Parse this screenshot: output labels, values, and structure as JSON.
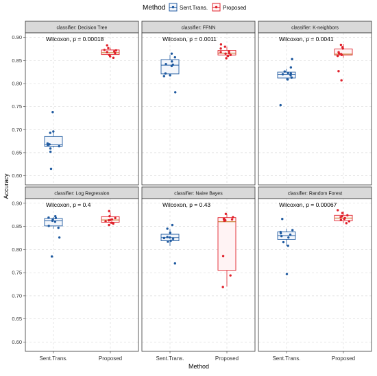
{
  "chart_data": {
    "type": "box",
    "legend": {
      "title": "Method",
      "placement": "top",
      "entries": [
        {
          "name": "Sent.Trans.",
          "color": "#1f5aa0"
        },
        {
          "name": "Proposed",
          "color": "#e0202a"
        }
      ]
    },
    "xlabel": "Method",
    "ylabel": "Accuracy",
    "ylim": [
      0.58,
      0.91
    ],
    "yticks": [
      "0.60",
      "0.65",
      "0.70",
      "0.75",
      "0.80",
      "0.85",
      "0.90"
    ],
    "categories": [
      "Sent.Trans.",
      "Proposed"
    ],
    "grid": true,
    "panels": [
      {
        "strip": "classifier: Decision Tree",
        "annotation": "Wilcoxon, p = 0.00018",
        "groups": [
          {
            "box": [
              0.661,
              0.664,
              0.667,
              0.685,
              0.698
            ],
            "points": [
              0.738,
              0.696,
              0.693,
              0.67,
              0.668,
              0.666,
              0.664,
              0.659,
              0.652,
              0.615
            ]
          },
          {
            "box": [
              0.86,
              0.863,
              0.867,
              0.873,
              0.878
            ],
            "points": [
              0.883,
              0.877,
              0.873,
              0.872,
              0.87,
              0.868,
              0.866,
              0.862,
              0.859,
              0.856
            ]
          }
        ]
      },
      {
        "strip": "classifier: FFNN",
        "annotation": "Wilcoxon, p = 0.0011",
        "groups": [
          {
            "box": [
              0.816,
              0.821,
              0.84,
              0.852,
              0.862
            ],
            "points": [
              0.865,
              0.857,
              0.848,
              0.842,
              0.841,
              0.838,
              0.822,
              0.818,
              0.816,
              0.781
            ]
          },
          {
            "box": [
              0.858,
              0.862,
              0.866,
              0.872,
              0.88
            ],
            "points": [
              0.885,
              0.88,
              0.876,
              0.87,
              0.868,
              0.866,
              0.865,
              0.862,
              0.86,
              0.855
            ]
          }
        ]
      },
      {
        "strip": "classifier: K-neighbors",
        "annotation": "Wilcoxon, p = 0.0041",
        "groups": [
          {
            "box": [
              0.807,
              0.812,
              0.82,
              0.825,
              0.832
            ],
            "points": [
              0.853,
              0.835,
              0.826,
              0.823,
              0.822,
              0.82,
              0.818,
              0.813,
              0.809,
              0.753
            ]
          },
          {
            "box": [
              0.856,
              0.862,
              0.864,
              0.875,
              0.886
            ],
            "points": [
              0.884,
              0.879,
              0.876,
              0.868,
              0.865,
              0.864,
              0.862,
              0.86,
              0.827,
              0.807
            ]
          }
        ]
      },
      {
        "strip": "classifier: Log Regression",
        "annotation": "Wilcoxon, p = 0.4",
        "groups": [
          {
            "box": [
              0.845,
              0.851,
              0.862,
              0.867,
              0.87
            ],
            "points": [
              0.872,
              0.869,
              0.868,
              0.865,
              0.862,
              0.86,
              0.851,
              0.847,
              0.826,
              0.785
            ]
          },
          {
            "box": [
              0.855,
              0.859,
              0.864,
              0.871,
              0.88
            ],
            "points": [
              0.883,
              0.872,
              0.868,
              0.865,
              0.864,
              0.863,
              0.861,
              0.858,
              0.856,
              0.853
            ]
          }
        ]
      },
      {
        "strip": "classifier: Naive Bayes",
        "annotation": "Wilcoxon, p = 0.43",
        "groups": [
          {
            "box": [
              0.808,
              0.819,
              0.826,
              0.833,
              0.844
            ],
            "points": [
              0.853,
              0.845,
              0.836,
              0.827,
              0.826,
              0.825,
              0.823,
              0.819,
              0.817,
              0.77
            ]
          },
          {
            "box": [
              0.72,
              0.755,
              0.86,
              0.869,
              0.877
            ],
            "points": [
              0.877,
              0.87,
              0.867,
              0.866,
              0.865,
              0.862,
              0.863,
              0.786,
              0.744,
              0.719
            ]
          }
        ]
      },
      {
        "strip": "classifier: Random Forest",
        "annotation": "Wilcoxon, p = 0.00067",
        "groups": [
          {
            "box": [
              0.808,
              0.822,
              0.83,
              0.838,
              0.845
            ],
            "points": [
              0.866,
              0.842,
              0.838,
              0.835,
              0.832,
              0.829,
              0.826,
              0.816,
              0.808,
              0.747
            ]
          },
          {
            "box": [
              0.857,
              0.862,
              0.868,
              0.874,
              0.882
            ],
            "points": [
              0.885,
              0.879,
              0.874,
              0.872,
              0.87,
              0.868,
              0.866,
              0.864,
              0.861,
              0.857
            ]
          }
        ]
      }
    ]
  }
}
